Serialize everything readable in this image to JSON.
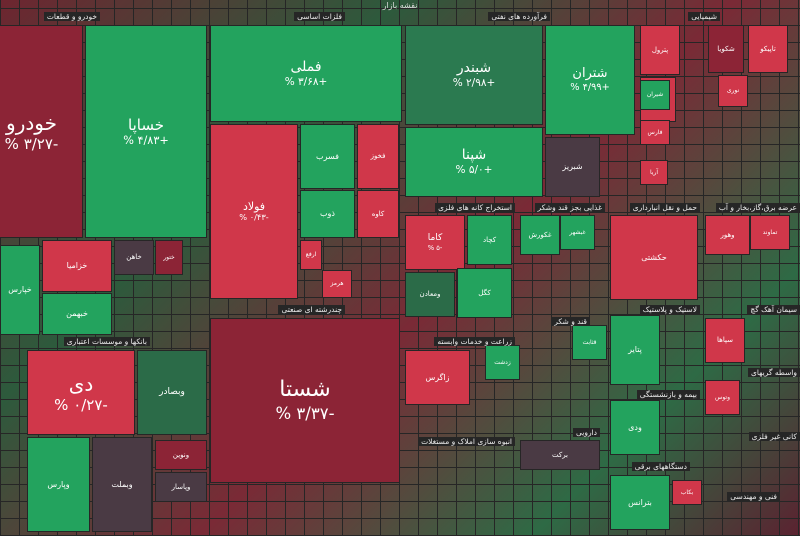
{
  "header": {
    "title": "نقشه بازار"
  },
  "sectors": [
    {
      "title": "خودرو و قطعات"
    },
    {
      "title": "فلزات اساسی"
    },
    {
      "title": "فرآورده های نفتی"
    },
    {
      "title": "شیمیایی"
    },
    {
      "title": "بانکها و موسسات اعتباری"
    },
    {
      "title": "چندرشته ای صنعتی"
    },
    {
      "title": "استخراج کانه های فلزی"
    },
    {
      "title": "غذایی بجز قند وشکر"
    },
    {
      "title": "حمل و نقل انبارداری"
    },
    {
      "title": "عرضه برق،گاز،بخار و آب"
    },
    {
      "title": "زراعت و خدمات وابسته"
    },
    {
      "title": "قند و شکر"
    },
    {
      "title": "لاستیک و پلاستیک"
    },
    {
      "title": "سیمان آهک گچ"
    },
    {
      "title": "بیمه و بازنشستگی"
    },
    {
      "title": "انبوه سازی املاک و مستغلات"
    },
    {
      "title": "دارویی"
    },
    {
      "title": "دستگاههای برقی"
    },
    {
      "title": "واسطه گریهای"
    },
    {
      "title": "کانی غیر فلزی"
    },
    {
      "title": "فنی و مهندسی"
    }
  ],
  "tiles": [
    {
      "name": "خودرو",
      "change": "-۳/۲۷ %",
      "color": "#8c2436"
    },
    {
      "name": "خساپا",
      "change": "+۴/۸۳ %",
      "color": "#23a35e"
    },
    {
      "name": "خزامیا",
      "color": "#d0374a"
    },
    {
      "name": "خاهن",
      "color": "#4a3a44"
    },
    {
      "name": "ختور",
      "color": "#8c2436"
    },
    {
      "name": "خپارس",
      "color": "#23a35e"
    },
    {
      "name": "خبهمن",
      "color": "#23a35e"
    },
    {
      "name": "دی",
      "change": "-۰/۲۷ %",
      "color": "#d0374a"
    },
    {
      "name": "وبصادر",
      "color": "#2b6b48"
    },
    {
      "name": "وپارس",
      "color": "#23a35e"
    },
    {
      "name": "وبملت",
      "color": "#4a3a44"
    },
    {
      "name": "ونوین",
      "color": "#8c2436"
    },
    {
      "name": "وپاسار",
      "color": "#4a3a44"
    },
    {
      "name": "فملی",
      "change": "+۳/۶۸ %",
      "color": "#23a35e"
    },
    {
      "name": "فولاد",
      "change": "-۰/۴۳ %",
      "color": "#d0374a"
    },
    {
      "name": "فسرب",
      "color": "#23a35e"
    },
    {
      "name": "فخوز",
      "color": "#d0374a"
    },
    {
      "name": "ذوب",
      "color": "#23a35e"
    },
    {
      "name": "کاوه",
      "color": "#d0374a"
    },
    {
      "name": "ارفع",
      "color": "#d0374a"
    },
    {
      "name": "هرمز",
      "color": "#d0374a"
    },
    {
      "name": "شستا",
      "change": "-۳/۳۷ %",
      "color": "#8c2436"
    },
    {
      "name": "شبندر",
      "change": "+۲/۹۸ %",
      "color": "#2b7a50"
    },
    {
      "name": "شپنا",
      "change": "+۵/۰ %",
      "color": "#23a35e"
    },
    {
      "name": "شتران",
      "change": "+۴/۹۹ %",
      "color": "#23a35e"
    },
    {
      "name": "شبریز",
      "color": "#4a3a44"
    },
    {
      "name": "پترول",
      "color": "#d0374a"
    },
    {
      "name": "شکویا",
      "color": "#8c2436"
    },
    {
      "name": "تاپیکو",
      "color": "#d0374a"
    },
    {
      "name": "شپدیس",
      "color": "#d0374a"
    },
    {
      "name": "نوری",
      "color": "#d0374a"
    },
    {
      "name": "شیران",
      "color": "#23a35e"
    },
    {
      "name": "فارس",
      "color": "#d0374a"
    },
    {
      "name": "آریا",
      "color": "#d0374a"
    },
    {
      "name": "کاما",
      "change": "-۵ %",
      "color": "#d0374a"
    },
    {
      "name": "کچاد",
      "color": "#23a35e"
    },
    {
      "name": "ومعادن",
      "color": "#2b6b48"
    },
    {
      "name": "کگل",
      "color": "#23a35e"
    },
    {
      "name": "غکورش",
      "color": "#23a35e"
    },
    {
      "name": "غبشهر",
      "color": "#23a35e"
    },
    {
      "name": "حکشتی",
      "color": "#d0374a"
    },
    {
      "name": "وهور",
      "color": "#d0374a"
    },
    {
      "name": "تماوند",
      "color": "#d0374a"
    },
    {
      "name": "زاگرس",
      "color": "#d0374a"
    },
    {
      "name": "زدشت",
      "color": "#23a35e"
    },
    {
      "name": "قثابت",
      "color": "#23a35e"
    },
    {
      "name": "پتایر",
      "color": "#23a35e"
    },
    {
      "name": "سپاها",
      "color": "#d0374a"
    },
    {
      "name": "ودی",
      "color": "#23a35e"
    },
    {
      "name": "وتوس",
      "color": "#d0374a"
    },
    {
      "name": "برکت",
      "color": "#4a3a44"
    },
    {
      "name": "بترانس",
      "color": "#23a35e"
    },
    {
      "name": "بکاب",
      "color": "#d0374a"
    }
  ]
}
